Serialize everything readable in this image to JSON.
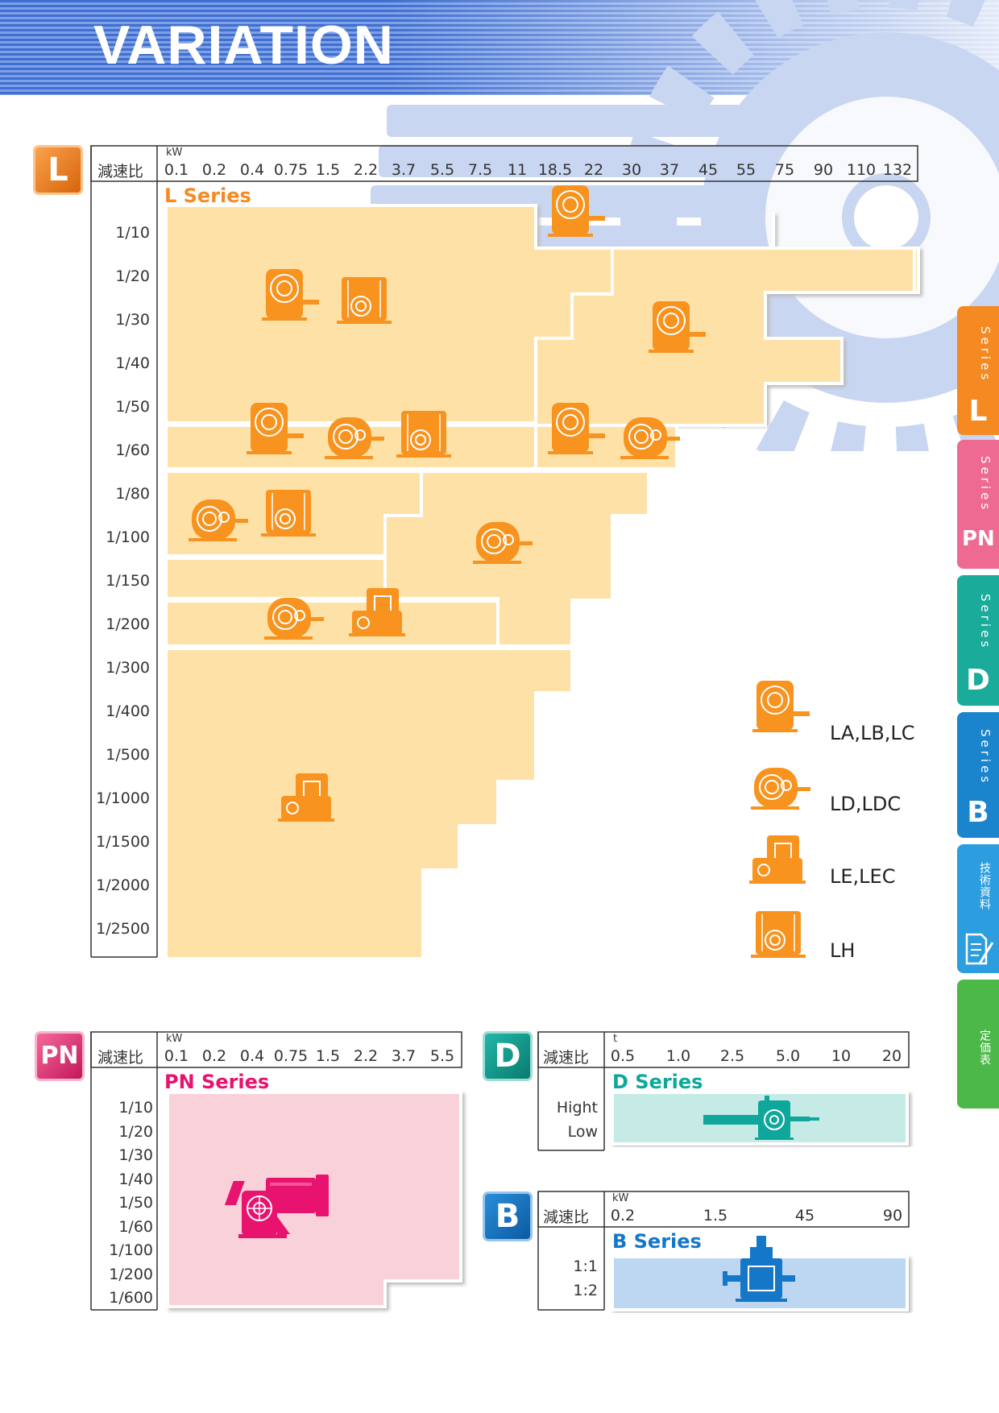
{
  "page": {
    "title": "VARIATION"
  },
  "axis": {
    "ratio_header": "減速比",
    "kw_unit": "kW",
    "t_unit": "t"
  },
  "l_series": {
    "badge": "L",
    "title": "L Series",
    "kw_ticks": [
      "0.1",
      "0.2",
      "0.4",
      "0.75",
      "1.5",
      "2.2",
      "3.7",
      "5.5",
      "7.5",
      "11",
      "18.5",
      "22",
      "30",
      "37",
      "45",
      "55",
      "75",
      "90",
      "110",
      "132"
    ],
    "ratios": [
      "1/10",
      "1/20",
      "1/30",
      "1/40",
      "1/50",
      "1/60",
      "1/80",
      "1/100",
      "1/150",
      "1/200",
      "1/300",
      "1/400",
      "1/500",
      "1/1000",
      "1/1500",
      "1/2000",
      "1/2500"
    ]
  },
  "legend": [
    {
      "type": "lh-vertical",
      "label": "LA,LB,LC"
    },
    {
      "type": "ld-round",
      "label": "LD,LDC"
    },
    {
      "type": "le-box",
      "label": "LE,LEC"
    },
    {
      "type": "lh-box",
      "label": "LH"
    }
  ],
  "pn_series": {
    "badge": "PN",
    "title": "PN Series",
    "kw_ticks": [
      "0.1",
      "0.2",
      "0.4",
      "0.75",
      "1.5",
      "2.2",
      "3.7",
      "5.5"
    ],
    "ratios": [
      "1/10",
      "1/20",
      "1/30",
      "1/40",
      "1/50",
      "1/60",
      "1/100",
      "1/200",
      "1/600"
    ]
  },
  "d_series": {
    "badge": "D",
    "title": "D Series",
    "t_ticks": [
      "0.5",
      "1.0",
      "2.5",
      "5.0",
      "10",
      "20"
    ],
    "ratios": [
      "Hight",
      "Low"
    ]
  },
  "b_series": {
    "badge": "B",
    "title": "B Series",
    "kw_ticks": [
      "0.2",
      "1.5",
      "45",
      "90"
    ],
    "ratios": [
      "1:1",
      "1:2"
    ]
  },
  "side_tabs": [
    {
      "letter": "L",
      "label": "Series",
      "color": "#f58a23"
    },
    {
      "letter": "PN",
      "label": "Series",
      "color": "#ee6a90"
    },
    {
      "letter": "D",
      "label": "Series",
      "color": "#1aab9a"
    },
    {
      "letter": "B",
      "label": "Series",
      "color": "#1a85cc"
    },
    {
      "letter": "",
      "label": "技術資料",
      "color": "#2c9ee0"
    },
    {
      "letter": "",
      "label": "定価表",
      "color": "#4cb848"
    }
  ],
  "colors": {
    "orange": "#f7931e",
    "pn_pink": "#e8136e",
    "d_teal": "#0fa79b",
    "b_blue": "#1477c8",
    "l_fill": "#fde1a7",
    "pn_fill": "#f9d1d8",
    "d_fill": "#c6ebe6",
    "b_fill": "#bdd6f1"
  }
}
